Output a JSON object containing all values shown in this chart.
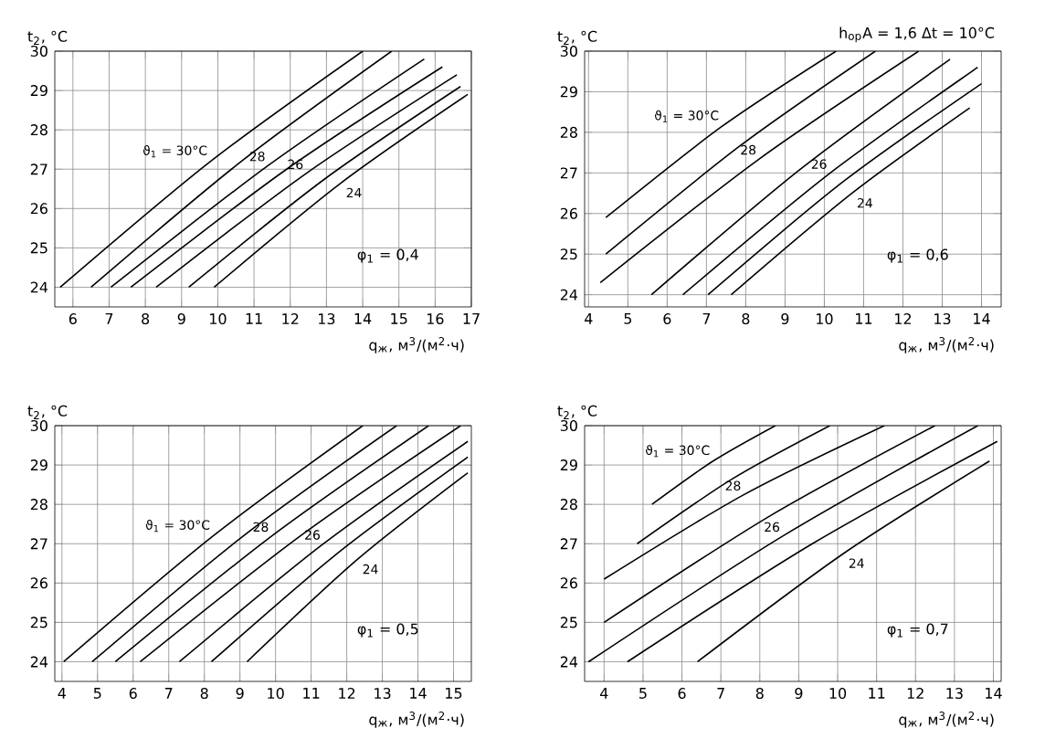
{
  "chart_data": [
    {
      "type": "line",
      "xlabel": "q$_{ж}$, м$^{3}$/(м$^{2}$·ч)",
      "ylabel": "t$_{2}$, °C",
      "xlim": [
        5.5,
        17
      ],
      "ylim": [
        23.5,
        30
      ],
      "xticks": [
        6,
        7,
        8,
        9,
        10,
        11,
        12,
        13,
        14,
        15,
        16,
        17
      ],
      "yticks": [
        24,
        25,
        26,
        27,
        28,
        29,
        30
      ],
      "grid": true,
      "marker": "none",
      "line_style": "solid",
      "annotations": [
        "φ$_{1}$ = 0,4"
      ],
      "series": [
        {
          "name": "ϑ$_{1}$ = 30°C",
          "color": "#000000",
          "x": [
            5.65,
            9.8,
            14.0
          ],
          "values": [
            24,
            27.2,
            30
          ]
        },
        {
          "color": "#000000",
          "x": [
            6.5,
            10.65,
            14.8
          ],
          "values": [
            24,
            27.2,
            30
          ]
        },
        {
          "name": "28",
          "color": "#000000",
          "x": [
            7.05,
            11.4,
            15.7
          ],
          "values": [
            24,
            27.1,
            29.8
          ]
        },
        {
          "color": "#000000",
          "x": [
            7.6,
            11.9,
            16.2
          ],
          "values": [
            24,
            27.0,
            29.6
          ]
        },
        {
          "name": "26",
          "color": "#000000",
          "x": [
            8.3,
            12.45,
            16.6
          ],
          "values": [
            24,
            26.9,
            29.4
          ]
        },
        {
          "color": "#000000",
          "x": [
            9.2,
            12.95,
            16.7
          ],
          "values": [
            24,
            26.75,
            29.1
          ]
        },
        {
          "name": "24",
          "color": "#000000",
          "x": [
            9.9,
            13.4,
            16.9
          ],
          "values": [
            24,
            26.65,
            28.9
          ]
        }
      ]
    },
    {
      "type": "line",
      "xlabel": "q$_{ж}$, м$^{3}$/(м$^{2}$·ч)",
      "ylabel": "t$_{2}$, °C",
      "xlim": [
        3.9,
        14.5
      ],
      "ylim": [
        23.7,
        30
      ],
      "xticks": [
        4,
        5,
        6,
        7,
        8,
        9,
        10,
        11,
        12,
        13,
        14
      ],
      "yticks": [
        24,
        25,
        26,
        27,
        28,
        29,
        30
      ],
      "grid": true,
      "marker": "none",
      "line_style": "solid",
      "annotations": [
        "φ$_{1}$ = 0,6",
        "h$_{ор}$A = 1,6   Δt = 10°C"
      ],
      "series": [
        {
          "name": "ϑ$_{1}$ = 30°C",
          "color": "#000000",
          "x": [
            4.44,
            7.4,
            10.3
          ],
          "values": [
            25.9,
            28.15,
            30
          ]
        },
        {
          "color": "#000000",
          "x": [
            4.44,
            7.9,
            11.3
          ],
          "values": [
            25.0,
            27.7,
            30
          ]
        },
        {
          "name": "28",
          "color": "#000000",
          "x": [
            4.3,
            8.35,
            12.4
          ],
          "values": [
            24.3,
            27.35,
            30
          ]
        },
        {
          "color": "#000000",
          "x": [
            5.6,
            9.4,
            13.2
          ],
          "values": [
            24,
            27.1,
            29.8
          ]
        },
        {
          "name": "26",
          "color": "#000000",
          "x": [
            6.4,
            10.15,
            13.9
          ],
          "values": [
            24,
            27.0,
            29.6
          ]
        },
        {
          "color": "#000000",
          "x": [
            7.04,
            10.5,
            14.0
          ],
          "values": [
            24,
            26.8,
            29.2
          ]
        },
        {
          "name": "24",
          "color": "#000000",
          "x": [
            7.63,
            10.7,
            13.7
          ],
          "values": [
            24,
            26.5,
            28.6
          ]
        }
      ]
    },
    {
      "type": "line",
      "xlabel": "q$_{ж}$, м$^{3}$/(м$^{2}$·ч)",
      "ylabel": "t$_{2}$, °C",
      "xlim": [
        3.8,
        15.5
      ],
      "ylim": [
        23.5,
        30
      ],
      "xticks": [
        4,
        5,
        6,
        7,
        8,
        9,
        10,
        11,
        12,
        13,
        14,
        15
      ],
      "yticks": [
        24,
        25,
        26,
        27,
        28,
        29,
        30
      ],
      "grid": true,
      "marker": "none",
      "line_style": "solid",
      "annotations": [
        "φ$_{1}$ = 0,5"
      ],
      "series": [
        {
          "name": "ϑ$_{1}$ = 30°C",
          "color": "#000000",
          "x": [
            4.05,
            8.25,
            12.45
          ],
          "values": [
            24,
            27.2,
            30
          ]
        },
        {
          "color": "#000000",
          "x": [
            4.85,
            9.1,
            13.4
          ],
          "values": [
            24,
            27.2,
            30
          ]
        },
        {
          "name": "28",
          "color": "#000000",
          "x": [
            5.5,
            9.9,
            14.3
          ],
          "values": [
            24,
            27.2,
            30
          ]
        },
        {
          "color": "#000000",
          "x": [
            6.2,
            10.7,
            15.2
          ],
          "values": [
            24,
            27.2,
            30
          ]
        },
        {
          "name": "26",
          "color": "#000000",
          "x": [
            7.3,
            11.35,
            15.4
          ],
          "values": [
            24,
            27.0,
            29.6
          ]
        },
        {
          "color": "#000000",
          "x": [
            8.2,
            11.8,
            15.4
          ],
          "values": [
            24,
            26.8,
            29.2
          ]
        },
        {
          "name": "24",
          "color": "#000000",
          "x": [
            9.2,
            12.3,
            15.4
          ],
          "values": [
            24,
            26.6,
            28.8
          ]
        }
      ]
    },
    {
      "type": "line",
      "xlabel": "q$_{ж}$, м$^{3}$/(м$^{2}$·ч)",
      "ylabel": "t$_{2}$, °C",
      "xlim": [
        3.5,
        14.2
      ],
      "ylim": [
        23.5,
        30
      ],
      "xticks": [
        4,
        5,
        6,
        7,
        8,
        9,
        10,
        11,
        12,
        13,
        14
      ],
      "yticks": [
        24,
        25,
        26,
        27,
        28,
        29,
        30
      ],
      "grid": true,
      "marker": "none",
      "line_style": "solid",
      "annotations": [
        "φ$_{1}$ = 0,7"
      ],
      "series": [
        {
          "name": "ϑ$_{1}$ = 30°C",
          "color": "#000000",
          "x": [
            5.23,
            6.8,
            8.4
          ],
          "values": [
            28.0,
            29.1,
            30
          ]
        },
        {
          "color": "#000000",
          "x": [
            4.85,
            7.3,
            9.8
          ],
          "values": [
            27.0,
            28.65,
            30
          ]
        },
        {
          "name": "28",
          "color": "#000000",
          "x": [
            4.0,
            7.6,
            11.2
          ],
          "values": [
            26.1,
            28.25,
            30
          ]
        },
        {
          "color": "#000000",
          "x": [
            4.0,
            8.25,
            12.5
          ],
          "values": [
            25.0,
            27.7,
            30
          ]
        },
        {
          "name": "26",
          "color": "#000000",
          "x": [
            3.6,
            8.6,
            13.6
          ],
          "values": [
            24,
            27.2,
            30
          ]
        },
        {
          "color": "#000000",
          "x": [
            4.6,
            9.35,
            14.1
          ],
          "values": [
            24,
            27.0,
            29.6
          ]
        },
        {
          "name": "24",
          "color": "#000000",
          "x": [
            6.4,
            10.15,
            13.9
          ],
          "values": [
            24,
            26.75,
            29.1
          ]
        }
      ]
    }
  ]
}
